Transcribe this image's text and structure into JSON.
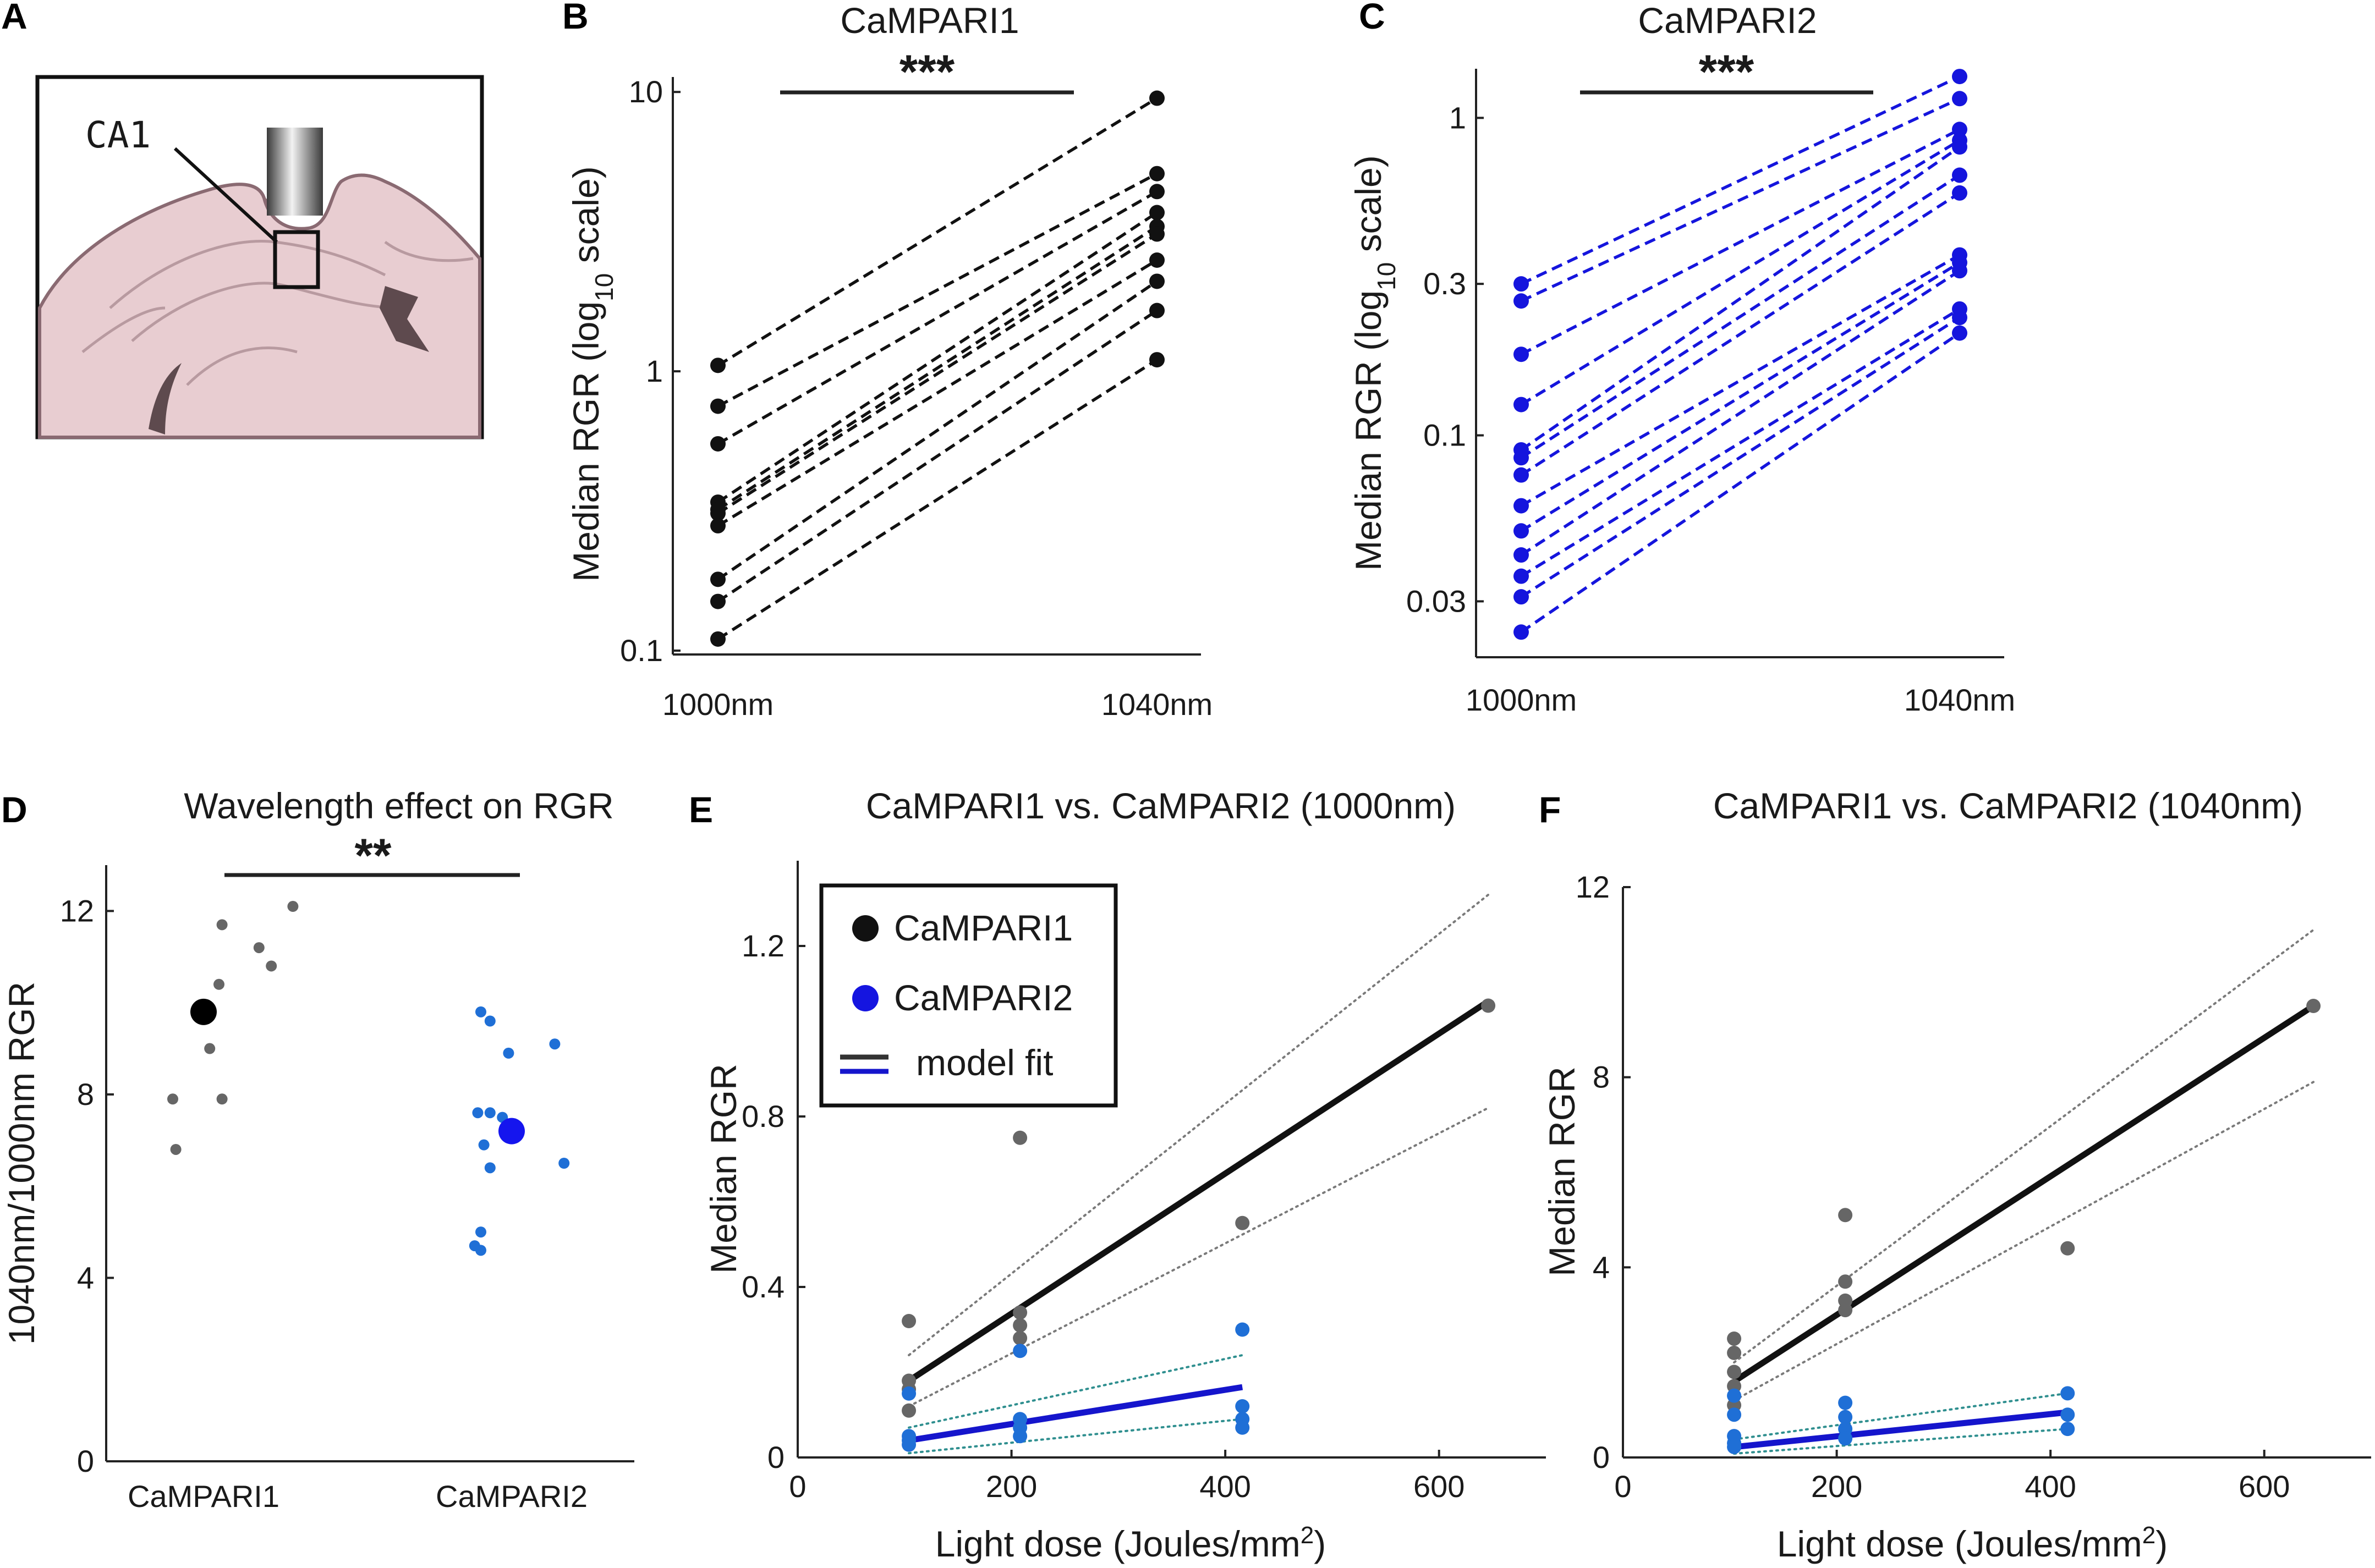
{
  "panels": {
    "A": {
      "label": "A",
      "region_label": "CA1"
    },
    "B": {
      "label": "B"
    },
    "C": {
      "label": "C"
    },
    "D": {
      "label": "D"
    },
    "E": {
      "label": "E",
      "legend": [
        "CaMPARI1",
        "CaMPARI2",
        "model fit"
      ]
    },
    "F": {
      "label": "F"
    }
  },
  "colors": {
    "black": "#111111",
    "gray_point": "#666666",
    "blue_line": "#1515cc",
    "blue_point": "#1f6fd6",
    "teal_ci": "#2f8f8f",
    "gray_ci": "#7a7a7a",
    "brain": "#e8cdd1",
    "brain_edge": "#8a6a72",
    "brain_dark": "#5e4a4e"
  },
  "chart_data": [
    {
      "id": "B",
      "type": "line",
      "title": "CaMPARI1",
      "ylabel_main": "Median RGR (log",
      "ylabel_sub": "10",
      "ylabel_end": " scale)",
      "yscale": "log",
      "ylim": [
        0.1,
        12
      ],
      "yticks": [
        0.1,
        1,
        10
      ],
      "ytick_labels": [
        "0.1",
        "1",
        "10"
      ],
      "categories": [
        "1000nm",
        "1040nm"
      ],
      "significance": "***",
      "series": [
        {
          "values": [
            1.05,
            9.5
          ]
        },
        {
          "values": [
            0.75,
            5.1
          ]
        },
        {
          "values": [
            0.55,
            4.4
          ]
        },
        {
          "values": [
            0.34,
            3.7
          ]
        },
        {
          "values": [
            0.32,
            3.3
          ]
        },
        {
          "values": [
            0.31,
            3.1
          ]
        },
        {
          "values": [
            0.28,
            2.5
          ]
        },
        {
          "values": [
            0.18,
            2.1
          ]
        },
        {
          "values": [
            0.15,
            1.65
          ]
        },
        {
          "values": [
            0.11,
            1.1
          ]
        }
      ]
    },
    {
      "id": "C",
      "type": "line",
      "title": "CaMPARI2",
      "ylabel_main": "Median RGR (log",
      "ylabel_sub": "10",
      "ylabel_end": " scale)",
      "yscale": "log",
      "ylim": [
        0.02,
        1.4
      ],
      "yticks": [
        0.03,
        0.1,
        0.3,
        1
      ],
      "ytick_labels": [
        "0.03",
        "0.1",
        "0.3",
        "1"
      ],
      "categories": [
        "1000nm",
        "1040nm"
      ],
      "significance": "***",
      "series": [
        {
          "values": [
            0.3,
            1.35
          ]
        },
        {
          "values": [
            0.265,
            1.15
          ]
        },
        {
          "values": [
            0.18,
            0.92
          ]
        },
        {
          "values": [
            0.125,
            0.85
          ]
        },
        {
          "values": [
            0.09,
            0.81
          ]
        },
        {
          "values": [
            0.085,
            0.66
          ]
        },
        {
          "values": [
            0.075,
            0.58
          ]
        },
        {
          "values": [
            0.06,
            0.37
          ]
        },
        {
          "values": [
            0.05,
            0.35
          ]
        },
        {
          "values": [
            0.042,
            0.33
          ]
        },
        {
          "values": [
            0.036,
            0.25
          ]
        },
        {
          "values": [
            0.031,
            0.235
          ]
        },
        {
          "values": [
            0.024,
            0.21
          ]
        }
      ]
    },
    {
      "id": "D",
      "type": "scatter",
      "title": "Wavelength effect on RGR",
      "ylabel": "1040nm/1000nm RGR",
      "ylim": [
        0,
        13
      ],
      "yticks": [
        0,
        4,
        8,
        12
      ],
      "categories": [
        "CaMPARI1",
        "CaMPARI2"
      ],
      "significance": "**",
      "groups": [
        {
          "name": "CaMPARI1",
          "mean": 9.8,
          "points": [
            {
              "x": 0.06,
              "y": 11.7
            },
            {
              "x": 0.18,
              "y": 11.2
            },
            {
              "x": 0.29,
              "y": 12.1
            },
            {
              "x": 0.22,
              "y": 10.8
            },
            {
              "x": 0.05,
              "y": 10.4
            },
            {
              "x": 0.02,
              "y": 9.0
            },
            {
              "x": -0.1,
              "y": 7.9
            },
            {
              "x": 0.06,
              "y": 7.9
            },
            {
              "x": -0.09,
              "y": 6.8
            }
          ]
        },
        {
          "name": "CaMPARI2",
          "mean": 7.2,
          "points": [
            {
              "x": -0.1,
              "y": 9.8
            },
            {
              "x": -0.07,
              "y": 9.6
            },
            {
              "x": -0.01,
              "y": 8.9
            },
            {
              "x": 0.14,
              "y": 9.1
            },
            {
              "x": -0.11,
              "y": 7.6
            },
            {
              "x": -0.07,
              "y": 7.6
            },
            {
              "x": -0.03,
              "y": 7.5
            },
            {
              "x": -0.09,
              "y": 6.9
            },
            {
              "x": -0.07,
              "y": 6.4
            },
            {
              "x": 0.17,
              "y": 6.5
            },
            {
              "x": -0.1,
              "y": 5.0
            },
            {
              "x": -0.12,
              "y": 4.7
            },
            {
              "x": -0.1,
              "y": 4.6
            }
          ]
        }
      ]
    },
    {
      "id": "E",
      "type": "scatter",
      "title": "CaMPARI1 vs. CaMPARI2 (1000nm)",
      "xlabel_main": "Light dose (Joules/mm",
      "xlabel_sup": "2",
      "xlabel_end": ")",
      "ylabel": "Median RGR",
      "xlim": [
        0,
        700
      ],
      "ylim": [
        0,
        1.4
      ],
      "xticks": [
        0,
        200,
        400,
        600
      ],
      "yticks": [
        0,
        0.4,
        0.8,
        1.2
      ],
      "ytick_labels": [
        "0",
        "0.4",
        "0.8",
        "1.2"
      ],
      "series": [
        {
          "name": "CaMPARI1",
          "points": [
            [
              104,
              0.32
            ],
            [
              104,
              0.18
            ],
            [
              104,
              0.16
            ],
            [
              104,
              0.11
            ],
            [
              208,
              0.75
            ],
            [
              208,
              0.34
            ],
            [
              208,
              0.31
            ],
            [
              208,
              0.28
            ],
            [
              416,
              0.55
            ],
            [
              646,
              1.06
            ]
          ],
          "fit": [
            [
              104,
              0.18
            ],
            [
              646,
              1.07
            ]
          ],
          "ci_upper": [
            [
              104,
              0.24
            ],
            [
              646,
              1.32
            ]
          ],
          "ci_lower": [
            [
              104,
              0.12
            ],
            [
              646,
              0.82
            ]
          ]
        },
        {
          "name": "CaMPARI2",
          "points": [
            [
              104,
              0.15
            ],
            [
              104,
              0.05
            ],
            [
              104,
              0.04
            ],
            [
              104,
              0.03
            ],
            [
              208,
              0.25
            ],
            [
              208,
              0.09
            ],
            [
              208,
              0.07
            ],
            [
              208,
              0.05
            ],
            [
              416,
              0.3
            ],
            [
              416,
              0.12
            ],
            [
              416,
              0.09
            ],
            [
              416,
              0.07
            ]
          ],
          "fit": [
            [
              104,
              0.04
            ],
            [
              416,
              0.165
            ]
          ],
          "ci_upper": [
            [
              104,
              0.07
            ],
            [
              416,
              0.24
            ]
          ],
          "ci_lower": [
            [
              104,
              0.01
            ],
            [
              416,
              0.09
            ]
          ]
        }
      ]
    },
    {
      "id": "F",
      "type": "scatter",
      "title": "CaMPARI1 vs. CaMPARI2 (1040nm)",
      "xlabel_main": "Light dose (Joules/mm",
      "xlabel_sup": "2",
      "xlabel_end": ")",
      "ylabel": "Median RGR",
      "xlim": [
        0,
        700
      ],
      "ylim": [
        0,
        12
      ],
      "xticks": [
        0,
        200,
        400,
        600
      ],
      "yticks": [
        0,
        4,
        8,
        12
      ],
      "ytick_labels": [
        "0",
        "4",
        "8",
        "12"
      ],
      "series": [
        {
          "name": "CaMPARI1",
          "points": [
            [
              104,
              2.5
            ],
            [
              104,
              2.2
            ],
            [
              104,
              1.8
            ],
            [
              104,
              1.5
            ],
            [
              104,
              1.1
            ],
            [
              208,
              5.1
            ],
            [
              208,
              3.7
            ],
            [
              208,
              3.3
            ],
            [
              208,
              3.1
            ],
            [
              416,
              4.4
            ],
            [
              646,
              9.5
            ]
          ],
          "fit": [
            [
              104,
              1.6
            ],
            [
              646,
              9.5
            ]
          ],
          "ci_upper": [
            [
              104,
              2.0
            ],
            [
              646,
              11.1
            ]
          ],
          "ci_lower": [
            [
              104,
              1.2
            ],
            [
              646,
              7.9
            ]
          ]
        },
        {
          "name": "CaMPARI2",
          "points": [
            [
              104,
              1.3
            ],
            [
              104,
              0.9
            ],
            [
              104,
              0.45
            ],
            [
              104,
              0.3
            ],
            [
              104,
              0.22
            ],
            [
              208,
              1.15
            ],
            [
              208,
              0.85
            ],
            [
              208,
              0.6
            ],
            [
              208,
              0.4
            ],
            [
              416,
              1.35
            ],
            [
              416,
              0.9
            ],
            [
              416,
              0.6
            ]
          ],
          "fit": [
            [
              104,
              0.22
            ],
            [
              416,
              0.95
            ]
          ],
          "ci_upper": [
            [
              104,
              0.38
            ],
            [
              416,
              1.35
            ]
          ],
          "ci_lower": [
            [
              104,
              0.08
            ],
            [
              416,
              0.6
            ]
          ]
        }
      ]
    }
  ]
}
